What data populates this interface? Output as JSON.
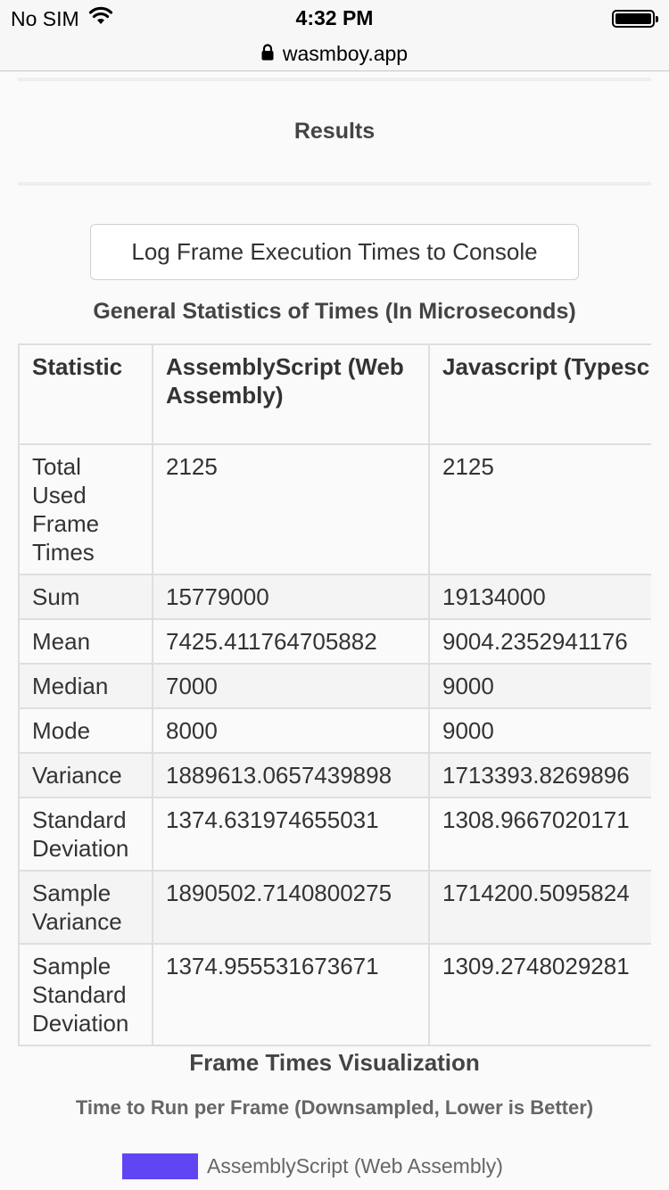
{
  "status_bar": {
    "carrier": "No SIM",
    "time": "4:32 PM"
  },
  "url_bar": {
    "domain": "wasmboy.app"
  },
  "results": {
    "title": "Results"
  },
  "log_button": {
    "label": "Log Frame Execution Times to Console"
  },
  "stats": {
    "title": "General Statistics of Times (In Microseconds)",
    "headers": [
      "Statistic",
      "AssemblyScript (Web Assembly)",
      "Javascript (Typescript)"
    ],
    "rows": [
      {
        "label": "Total Used Frame Times",
        "as": "2125",
        "js": "2125"
      },
      {
        "label": "Sum",
        "as": "15779000",
        "js": "19134000"
      },
      {
        "label": "Mean",
        "as": "7425.411764705882",
        "js": "9004.2352941176"
      },
      {
        "label": "Median",
        "as": "7000",
        "js": "9000"
      },
      {
        "label": "Mode",
        "as": "8000",
        "js": "9000"
      },
      {
        "label": "Variance",
        "as": "1889613.0657439898",
        "js": "1713393.8269896"
      },
      {
        "label": "Standard Deviation",
        "as": "1374.631974655031",
        "js": "1308.9667020171"
      },
      {
        "label": "Sample Variance",
        "as": "1890502.7140800275",
        "js": "1714200.5095824"
      },
      {
        "label": "Sample Standard Deviation",
        "as": "1374.955531673671",
        "js": "1309.2748029281"
      }
    ]
  },
  "visualization": {
    "title": "Frame Times Visualization",
    "subtitle": "Time to Run per Frame (Downsampled, Lower is Better)",
    "legend_label": "AssemblyScript (Web Assembly)",
    "legend_color": "#6045f5"
  }
}
